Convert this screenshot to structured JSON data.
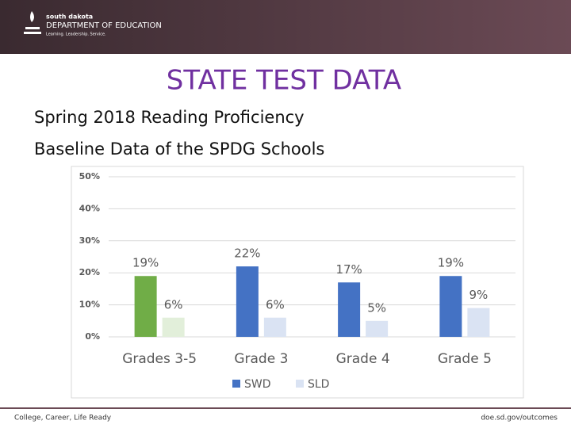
{
  "header": {
    "org_small": "south dakota",
    "org_name": "DEPARTMENT OF EDUCATION",
    "motto": "Learning. Leadership. Service."
  },
  "title": "STATE TEST DATA",
  "subtitle_lines": [
    "Spring 2018 Reading Proficiency",
    "Baseline Data of the SPDG Schools"
  ],
  "chart_data": {
    "type": "bar",
    "categories": [
      "Grades 3-5",
      "Grade 3",
      "Grade 4",
      "Grade 5"
    ],
    "series": [
      {
        "name": "SWD",
        "color": "#4472c4",
        "point_colors": [
          "#70ad47",
          "#4472c4",
          "#4472c4",
          "#4472c4"
        ],
        "values": [
          19,
          22,
          17,
          19
        ],
        "value_labels": [
          "19%",
          "22%",
          "17%",
          "19%"
        ]
      },
      {
        "name": "SLD",
        "color": "#dae3f3",
        "point_colors": [
          "#e2efda",
          "#dae3f3",
          "#dae3f3",
          "#dae3f3"
        ],
        "values": [
          6,
          6,
          5,
          9
        ],
        "value_labels": [
          "6%",
          "6%",
          "5%",
          "9%"
        ]
      }
    ],
    "ylim": [
      0,
      50
    ],
    "yticks": [
      {
        "value": 0,
        "label": "0%"
      },
      {
        "value": 10,
        "label": "10%"
      },
      {
        "value": 20,
        "label": "20%"
      },
      {
        "value": 30,
        "label": "30%"
      },
      {
        "value": 40,
        "label": "40%"
      },
      {
        "value": 50,
        "label": "50%"
      }
    ],
    "grid": true,
    "legend": "bottom"
  },
  "footer": {
    "left": "College, Career, Life Ready",
    "right": "doe.sd.gov/outcomes"
  }
}
